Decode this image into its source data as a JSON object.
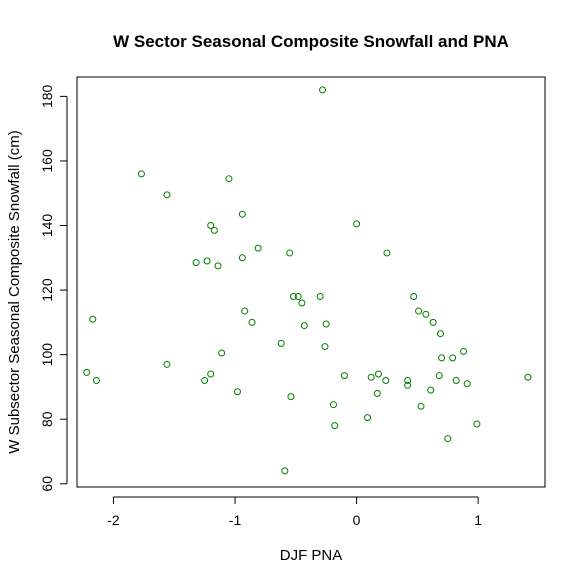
{
  "chart_data": {
    "type": "scatter",
    "title": "W Sector Seasonal Composite Snowfall and PNA",
    "xlabel": "DJF PNA",
    "ylabel": "W Subsector Seasonal Composite Snowfall (cm)",
    "xlim": [
      -2.3,
      1.55
    ],
    "ylim": [
      59,
      186
    ],
    "x_ticks": [
      -2,
      -1,
      0,
      1
    ],
    "x_tick_labels": [
      "-2",
      "-1",
      "0",
      "1"
    ],
    "y_ticks": [
      60,
      80,
      100,
      120,
      140,
      160,
      180
    ],
    "y_tick_labels": [
      "60",
      "80",
      "100",
      "120",
      "140",
      "160",
      "180"
    ],
    "grid": false,
    "point_color": "#008000",
    "points": [
      {
        "x": -2.22,
        "y": 94.5
      },
      {
        "x": -2.17,
        "y": 111.0
      },
      {
        "x": -2.14,
        "y": 92.0
      },
      {
        "x": -1.77,
        "y": 156.0
      },
      {
        "x": -1.56,
        "y": 149.5
      },
      {
        "x": -1.56,
        "y": 97.0
      },
      {
        "x": -1.32,
        "y": 128.5
      },
      {
        "x": -1.25,
        "y": 92.0
      },
      {
        "x": -1.23,
        "y": 129.0
      },
      {
        "x": -1.2,
        "y": 140.0
      },
      {
        "x": -1.2,
        "y": 94.0
      },
      {
        "x": -1.17,
        "y": 138.5
      },
      {
        "x": -1.14,
        "y": 127.5
      },
      {
        "x": -1.11,
        "y": 100.5
      },
      {
        "x": -1.05,
        "y": 154.5
      },
      {
        "x": -0.98,
        "y": 88.5
      },
      {
        "x": -0.94,
        "y": 143.5
      },
      {
        "x": -0.94,
        "y": 130.0
      },
      {
        "x": -0.92,
        "y": 113.5
      },
      {
        "x": -0.86,
        "y": 110.0
      },
      {
        "x": -0.81,
        "y": 133.0
      },
      {
        "x": -0.62,
        "y": 103.5
      },
      {
        "x": -0.59,
        "y": 64.0
      },
      {
        "x": -0.55,
        "y": 131.5
      },
      {
        "x": -0.54,
        "y": 87.0
      },
      {
        "x": -0.52,
        "y": 118.0
      },
      {
        "x": -0.48,
        "y": 118.0
      },
      {
        "x": -0.45,
        "y": 116.0
      },
      {
        "x": -0.43,
        "y": 109.0
      },
      {
        "x": -0.3,
        "y": 118.0
      },
      {
        "x": -0.28,
        "y": 182.0
      },
      {
        "x": -0.25,
        "y": 109.5
      },
      {
        "x": -0.26,
        "y": 102.5
      },
      {
        "x": -0.19,
        "y": 84.5
      },
      {
        "x": -0.18,
        "y": 78.0
      },
      {
        "x": -0.1,
        "y": 93.5
      },
      {
        "x": 0.0,
        "y": 140.5
      },
      {
        "x": 0.09,
        "y": 80.5
      },
      {
        "x": 0.12,
        "y": 93.0
      },
      {
        "x": 0.17,
        "y": 88.0
      },
      {
        "x": 0.18,
        "y": 94.0
      },
      {
        "x": 0.24,
        "y": 92.0
      },
      {
        "x": 0.25,
        "y": 131.5
      },
      {
        "x": 0.42,
        "y": 92.0
      },
      {
        "x": 0.42,
        "y": 90.5
      },
      {
        "x": 0.47,
        "y": 118.0
      },
      {
        "x": 0.51,
        "y": 113.5
      },
      {
        "x": 0.53,
        "y": 84.0
      },
      {
        "x": 0.57,
        "y": 112.5
      },
      {
        "x": 0.61,
        "y": 89.0
      },
      {
        "x": 0.63,
        "y": 110.0
      },
      {
        "x": 0.68,
        "y": 93.5
      },
      {
        "x": 0.69,
        "y": 106.5
      },
      {
        "x": 0.7,
        "y": 99.0
      },
      {
        "x": 0.75,
        "y": 74.0
      },
      {
        "x": 0.79,
        "y": 99.0
      },
      {
        "x": 0.82,
        "y": 92.0
      },
      {
        "x": 0.88,
        "y": 101.0
      },
      {
        "x": 0.91,
        "y": 91.0
      },
      {
        "x": 0.99,
        "y": 78.5
      },
      {
        "x": 1.41,
        "y": 93.0
      }
    ]
  }
}
